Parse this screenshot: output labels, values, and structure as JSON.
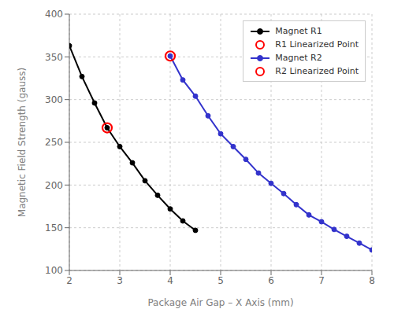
{
  "chart_data": {
    "type": "line",
    "xlabel": "Package Air Gap – X Axis (mm)",
    "ylabel": "Magnetic Field Strength (gauss)",
    "xlim": [
      2,
      8
    ],
    "ylim": [
      100,
      400
    ],
    "xticks": [
      2,
      3,
      4,
      5,
      6,
      7,
      8
    ],
    "yticks": [
      100,
      150,
      200,
      250,
      300,
      350,
      400
    ],
    "grid": true,
    "legend": "upper right",
    "series": [
      {
        "name": "Magnet R1",
        "type": "line",
        "color": "#000000",
        "marker": "circle",
        "x": [
          2.0,
          2.25,
          2.5,
          2.75,
          3.0,
          3.25,
          3.5,
          3.75,
          4.0,
          4.25,
          4.5
        ],
        "values": [
          363,
          327,
          296,
          267,
          245,
          226,
          205,
          188,
          172,
          158,
          147
        ]
      },
      {
        "name": "R1 Linearized Point",
        "type": "scatter",
        "color": "#FF0000",
        "marker": "open circle",
        "x": [
          2.75
        ],
        "values": [
          267
        ]
      },
      {
        "name": "Magnet R2",
        "type": "line",
        "color": "#3333CC",
        "marker": "circle",
        "x": [
          4.0,
          4.25,
          4.5,
          4.75,
          5.0,
          5.25,
          5.5,
          5.75,
          6.0,
          6.25,
          6.5,
          6.75,
          7.0,
          7.25,
          7.5,
          7.75,
          8.0
        ],
        "values": [
          351,
          323,
          304,
          281,
          260,
          245,
          230,
          214,
          202,
          190,
          177,
          165,
          157,
          148,
          140,
          132,
          124
        ]
      },
      {
        "name": "R2 Linearized Point",
        "type": "scatter",
        "color": "#FF0000",
        "marker": "open circle",
        "x": [
          4.0
        ],
        "values": [
          351
        ]
      }
    ]
  }
}
